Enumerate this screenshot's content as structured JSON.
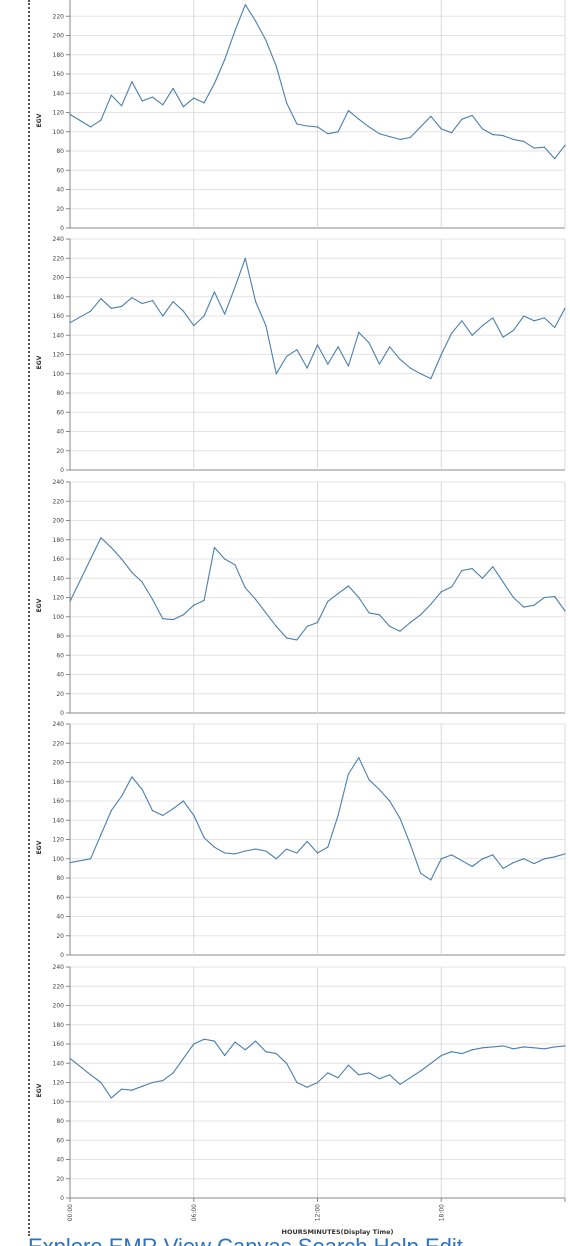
{
  "chart_data": {
    "type": "line",
    "layout": "vertically stacked small multiples sharing one x axis",
    "x_axis": {
      "label": "HOURSMINUTES(Display Time)",
      "range": [
        "00:00",
        "24:00"
      ],
      "ticks": [
        "00:00",
        "06:00",
        "12:00",
        "18:00"
      ],
      "tick_label_orientation": "vertical"
    },
    "y_axis": {
      "label": "EGV",
      "range": [
        0,
        240
      ],
      "ticks": [
        0,
        20,
        40,
        60,
        80,
        100,
        120,
        140,
        160,
        180,
        200,
        220,
        240
      ]
    },
    "grid": true,
    "line_color": "#4a7fae",
    "panels": [
      {
        "x": [
          "00:00",
          "01:00",
          "01:30",
          "02:00",
          "02:30",
          "03:00",
          "03:30",
          "04:00",
          "04:30",
          "05:00",
          "05:30",
          "06:00",
          "06:30",
          "07:00",
          "07:30",
          "08:00",
          "08:30",
          "09:00",
          "09:30",
          "10:00",
          "10:30",
          "11:00",
          "11:30",
          "12:00",
          "12:30",
          "13:00",
          "13:30",
          "14:00",
          "14:30",
          "15:00",
          "15:30",
          "16:00",
          "16:30",
          "17:00",
          "17:30",
          "18:00",
          "18:30",
          "19:00",
          "19:30",
          "20:00",
          "20:30",
          "21:00",
          "21:30",
          "22:00",
          "22:30",
          "23:00",
          "23:30",
          "24:00"
        ],
        "values": [
          118,
          105,
          112,
          138,
          127,
          152,
          132,
          136,
          128,
          145,
          126,
          135,
          130,
          150,
          175,
          205,
          232,
          215,
          195,
          168,
          130,
          108,
          106,
          105,
          98,
          100,
          122,
          113,
          105,
          98,
          95,
          92,
          94,
          105,
          116,
          103,
          99,
          113,
          117,
          103,
          97,
          96,
          92,
          90,
          83,
          84,
          72,
          86
        ]
      },
      {
        "x": [
          "00:00",
          "01:00",
          "01:30",
          "02:00",
          "02:30",
          "03:00",
          "03:30",
          "04:00",
          "04:30",
          "05:00",
          "05:30",
          "06:00",
          "06:30",
          "07:00",
          "07:30",
          "08:00",
          "08:30",
          "09:00",
          "09:30",
          "10:00",
          "10:30",
          "11:00",
          "11:30",
          "12:00",
          "12:30",
          "13:00",
          "13:30",
          "14:00",
          "14:30",
          "15:00",
          "15:30",
          "16:00",
          "16:30",
          "17:00",
          "17:30",
          "18:00",
          "18:30",
          "19:00",
          "19:30",
          "20:00",
          "20:30",
          "21:00",
          "21:30",
          "22:00",
          "22:30",
          "23:00",
          "23:30",
          "24:00"
        ],
        "values": [
          153,
          165,
          178,
          168,
          170,
          179,
          173,
          176,
          160,
          175,
          165,
          150,
          160,
          185,
          162,
          190,
          220,
          175,
          150,
          100,
          118,
          125,
          106,
          130,
          110,
          128,
          108,
          143,
          132,
          110,
          128,
          115,
          106,
          100,
          95,
          120,
          142,
          155,
          140,
          150,
          158,
          138,
          145,
          160,
          155,
          158,
          148,
          168
        ]
      },
      {
        "x": [
          "00:00",
          "01:00",
          "01:30",
          "02:00",
          "02:30",
          "03:00",
          "03:30",
          "04:00",
          "04:30",
          "05:00",
          "05:30",
          "06:00",
          "06:30",
          "07:00",
          "07:30",
          "08:00",
          "08:30",
          "09:00",
          "09:30",
          "10:00",
          "10:30",
          "11:00",
          "11:30",
          "12:00",
          "12:30",
          "13:00",
          "13:30",
          "14:00",
          "14:30",
          "15:00",
          "15:30",
          "16:00",
          "16:30",
          "17:00",
          "17:30",
          "18:00",
          "18:30",
          "19:00",
          "19:30",
          "20:00",
          "20:30",
          "21:00",
          "21:30",
          "22:00",
          "22:30",
          "23:00",
          "23:30",
          "24:00"
        ],
        "values": [
          116,
          160,
          182,
          172,
          160,
          146,
          136,
          118,
          98,
          97,
          102,
          112,
          117,
          172,
          160,
          154,
          130,
          118,
          104,
          90,
          78,
          76,
          90,
          94,
          116,
          124,
          132,
          120,
          104,
          102,
          90,
          85,
          94,
          102,
          113,
          126,
          131,
          148,
          150,
          140,
          152,
          136,
          120,
          110,
          112,
          120,
          121,
          106
        ]
      },
      {
        "x": [
          "00:00",
          "01:00",
          "01:30",
          "02:00",
          "02:30",
          "03:00",
          "03:30",
          "04:00",
          "04:30",
          "05:00",
          "05:30",
          "06:00",
          "06:30",
          "07:00",
          "07:30",
          "08:00",
          "08:30",
          "09:00",
          "09:30",
          "10:00",
          "10:30",
          "11:00",
          "11:30",
          "12:00",
          "12:30",
          "13:00",
          "13:30",
          "14:00",
          "14:30",
          "15:00",
          "15:30",
          "16:00",
          "16:30",
          "17:00",
          "17:30",
          "18:00",
          "18:30",
          "19:00",
          "19:30",
          "20:00",
          "20:30",
          "21:00",
          "21:30",
          "22:00",
          "22:30",
          "23:00",
          "23:30",
          "24:00"
        ],
        "values": [
          96,
          100,
          125,
          150,
          165,
          185,
          172,
          150,
          145,
          152,
          160,
          145,
          122,
          112,
          106,
          105,
          108,
          110,
          108,
          100,
          110,
          106,
          118,
          106,
          112,
          145,
          188,
          205,
          182,
          172,
          160,
          142,
          115,
          85,
          78,
          100,
          104,
          98,
          92,
          100,
          104,
          90,
          96,
          100,
          95,
          100,
          102,
          105
        ]
      },
      {
        "x": [
          "00:00",
          "01:00",
          "01:30",
          "02:00",
          "02:30",
          "03:00",
          "03:30",
          "04:00",
          "04:30",
          "05:00",
          "05:30",
          "06:00",
          "06:30",
          "07:00",
          "07:30",
          "08:00",
          "08:30",
          "09:00",
          "09:30",
          "10:00",
          "10:30",
          "11:00",
          "11:30",
          "12:00",
          "12:30",
          "13:00",
          "13:30",
          "14:00",
          "14:30",
          "15:00",
          "15:30",
          "16:00",
          "16:30",
          "17:00",
          "17:30",
          "18:00",
          "18:30",
          "19:00",
          "19:30",
          "20:00",
          "20:30",
          "21:00",
          "21:30",
          "22:00",
          "22:30",
          "23:00",
          "23:30",
          "24:00"
        ],
        "values": [
          145,
          128,
          120,
          104,
          113,
          112,
          116,
          120,
          122,
          130,
          145,
          160,
          165,
          163,
          148,
          162,
          154,
          163,
          152,
          150,
          140,
          120,
          115,
          120,
          130,
          125,
          138,
          128,
          130,
          124,
          128,
          118,
          125,
          132,
          140,
          148,
          152,
          150,
          154,
          156,
          157,
          158,
          155,
          157,
          156,
          155,
          157,
          158
        ]
      }
    ]
  },
  "footer": {
    "link_text": "Explore EMR View Canvas Search Help Edit"
  }
}
